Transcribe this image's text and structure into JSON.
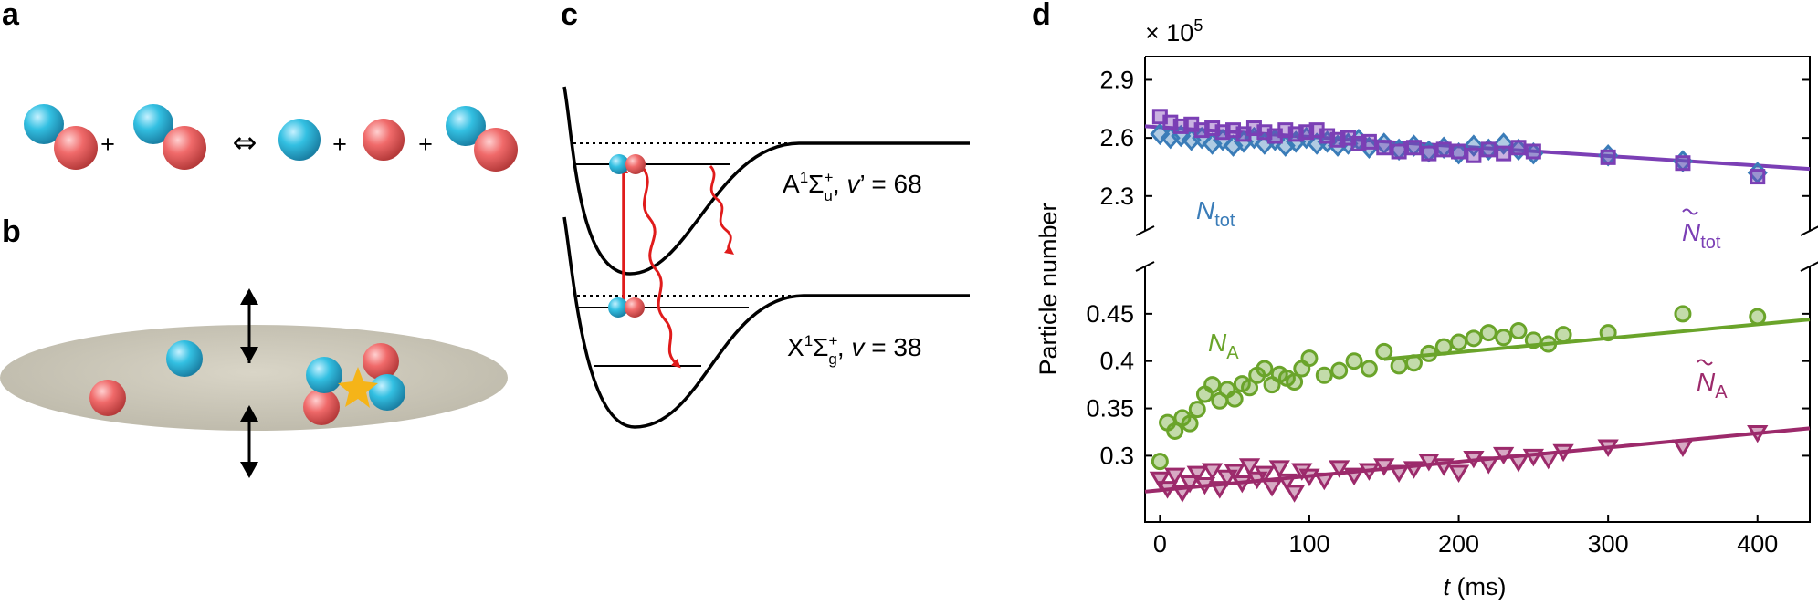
{
  "panels": {
    "a": "a",
    "b": "b",
    "c": "c",
    "d": "d"
  },
  "colors": {
    "cyan_atom": "#33c0e2",
    "red_atom": "#f06a6a",
    "tot_diamond": "#3a7cb8",
    "tot_square": "#7b3fb5",
    "atoms_circle": "#6aa42a",
    "atoms_triangle": "#9c2a6b",
    "photon": "#e01b1b",
    "disk": "#cfcbbd",
    "star": "#f5b418"
  },
  "panel_a": {
    "plus": "+",
    "equilibrium": "⇔"
  },
  "panel_c": {
    "upper": {
      "label": "A",
      "sup": "1",
      "sigma": "Σ",
      "sub": "u",
      "supplus": "+",
      "rest": ", ",
      "v": "v",
      "vprime": "’ = 68"
    },
    "lower": {
      "label": "X",
      "sup": "1",
      "sigma": "Σ",
      "sub": "g",
      "supplus": "+",
      "rest": ", ",
      "v": "v",
      "vval": " = 38"
    }
  },
  "chart_data": {
    "type": "scatter",
    "ylabel": "Particle number",
    "xlabel_var": "t",
    "xlabel_unit": " (ms)",
    "scale_label": "× 10",
    "scale_exp": "5",
    "x_ticks": [
      0,
      100,
      200,
      300,
      400
    ],
    "xlim": [
      -10,
      435
    ],
    "upper_axis": {
      "ylim": [
        2.12,
        3.02
      ],
      "ticks": [
        "2.9",
        "2.6",
        "2.3"
      ],
      "tick_values": [
        2.9,
        2.6,
        2.3
      ]
    },
    "lower_axis": {
      "ylim": [
        0.23,
        0.5
      ],
      "ticks": [
        "0.45",
        "0.4",
        "0.35",
        "0.3"
      ],
      "tick_values": [
        0.45,
        0.4,
        0.35,
        0.3
      ]
    },
    "series": [
      {
        "name": "N_tot",
        "label_main": "N",
        "label_sub": "tot",
        "tilde": false,
        "axis": "upper",
        "marker": "diamond",
        "color": "#3a7cb8",
        "x": [
          0,
          7,
          14,
          21,
          28,
          35,
          42,
          49,
          56,
          63,
          70,
          77,
          84,
          91,
          98,
          105,
          112,
          119,
          126,
          133,
          140,
          150,
          160,
          170,
          180,
          190,
          200,
          210,
          220,
          230,
          240,
          250,
          300,
          350,
          400
        ],
        "y": [
          2.62,
          2.6,
          2.61,
          2.59,
          2.6,
          2.57,
          2.59,
          2.56,
          2.58,
          2.6,
          2.57,
          2.59,
          2.56,
          2.58,
          2.6,
          2.57,
          2.58,
          2.56,
          2.57,
          2.59,
          2.55,
          2.57,
          2.54,
          2.56,
          2.53,
          2.55,
          2.52,
          2.56,
          2.54,
          2.57,
          2.54,
          2.52,
          2.51,
          2.48,
          2.42
        ]
      },
      {
        "name": "N_tot_model",
        "label_main": "N",
        "label_sub": "tot",
        "tilde": true,
        "axis": "upper",
        "marker": "square",
        "color": "#7b3fb5",
        "x": [
          0,
          7,
          14,
          21,
          28,
          35,
          42,
          49,
          56,
          63,
          70,
          77,
          84,
          91,
          98,
          105,
          112,
          119,
          126,
          133,
          140,
          150,
          160,
          170,
          180,
          190,
          200,
          210,
          220,
          230,
          240,
          250,
          300,
          350,
          400
        ],
        "y": [
          2.71,
          2.68,
          2.66,
          2.67,
          2.64,
          2.65,
          2.63,
          2.64,
          2.62,
          2.65,
          2.63,
          2.61,
          2.64,
          2.62,
          2.63,
          2.64,
          2.61,
          2.59,
          2.6,
          2.57,
          2.58,
          2.55,
          2.53,
          2.55,
          2.52,
          2.54,
          2.53,
          2.51,
          2.54,
          2.52,
          2.55,
          2.53,
          2.5,
          2.47,
          2.4
        ],
        "fit": {
          "x": [
            -10,
            435
          ],
          "y": [
            2.66,
            2.44
          ]
        }
      },
      {
        "name": "N_A",
        "label_main": "N",
        "label_sub": "A",
        "tilde": false,
        "axis": "lower",
        "marker": "circle",
        "color": "#6aa42a",
        "x": [
          0,
          5,
          10,
          15,
          20,
          25,
          30,
          35,
          40,
          45,
          50,
          55,
          60,
          65,
          70,
          75,
          80,
          85,
          90,
          95,
          100,
          110,
          120,
          130,
          140,
          150,
          160,
          170,
          180,
          190,
          200,
          210,
          220,
          230,
          240,
          250,
          260,
          270,
          300,
          350,
          400
        ],
        "y": [
          0.294,
          0.335,
          0.326,
          0.34,
          0.334,
          0.349,
          0.365,
          0.375,
          0.358,
          0.37,
          0.36,
          0.376,
          0.372,
          0.385,
          0.392,
          0.375,
          0.386,
          0.382,
          0.378,
          0.392,
          0.403,
          0.385,
          0.39,
          0.4,
          0.392,
          0.41,
          0.395,
          0.398,
          0.408,
          0.415,
          0.42,
          0.424,
          0.43,
          0.425,
          0.432,
          0.422,
          0.418,
          0.428,
          0.43,
          0.45,
          0.447
        ]
      },
      {
        "name": "N_A_model",
        "label_main": "N",
        "label_sub": "A",
        "tilde": true,
        "axis": "lower",
        "marker": "triangle",
        "color": "#9c2a6b",
        "x": [
          0,
          5,
          10,
          15,
          20,
          25,
          30,
          35,
          40,
          45,
          50,
          55,
          60,
          65,
          70,
          75,
          80,
          85,
          90,
          95,
          100,
          110,
          120,
          130,
          140,
          150,
          160,
          170,
          180,
          190,
          200,
          210,
          220,
          230,
          240,
          250,
          260,
          270,
          300,
          350,
          400
        ],
        "y": [
          0.276,
          0.266,
          0.28,
          0.262,
          0.272,
          0.282,
          0.27,
          0.285,
          0.266,
          0.278,
          0.284,
          0.272,
          0.29,
          0.276,
          0.282,
          0.268,
          0.288,
          0.274,
          0.262,
          0.285,
          0.279,
          0.275,
          0.288,
          0.28,
          0.285,
          0.29,
          0.283,
          0.287,
          0.295,
          0.29,
          0.283,
          0.298,
          0.292,
          0.302,
          0.294,
          0.3,
          0.297,
          0.305,
          0.31,
          0.31,
          0.325
        ],
        "fit": {
          "x": [
            -10,
            435
          ],
          "y": [
            0.262,
            0.329
          ]
        }
      },
      {
        "name": "N_A_fit",
        "axis": "lower",
        "marker": "none",
        "color": "#6aa42a",
        "fit": {
          "x": [
            150,
            435
          ],
          "y": [
            0.402,
            0.444
          ]
        }
      }
    ]
  }
}
